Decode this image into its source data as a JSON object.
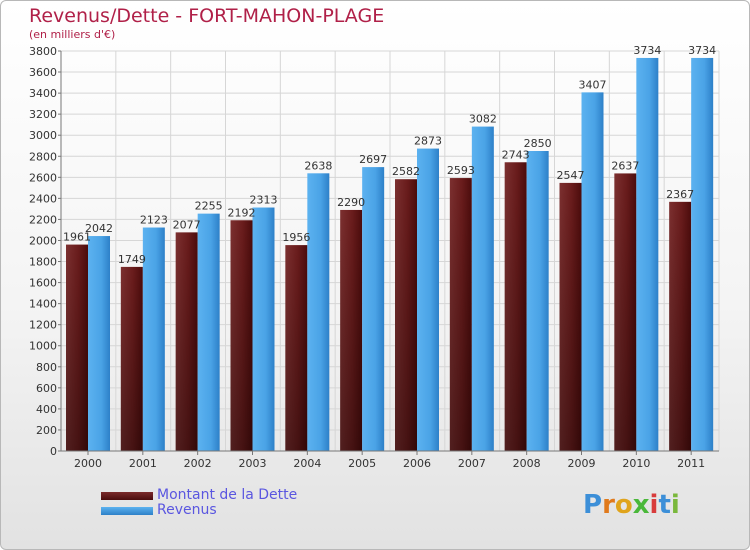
{
  "header": {
    "title": "Revenus/Dette - FORT-MAHON-PLAGE",
    "subtitle": "(en milliers d'€)"
  },
  "chart_data": {
    "type": "bar",
    "categories": [
      "2000",
      "2001",
      "2002",
      "2003",
      "2004",
      "2005",
      "2006",
      "2007",
      "2008",
      "2009",
      "2010",
      "2011"
    ],
    "series": [
      {
        "name": "Montant de la Dette",
        "values": [
          1961,
          1749,
          2077,
          2192,
          1956,
          2290,
          2582,
          2593,
          2743,
          2547,
          2637,
          2367
        ],
        "color": "#7a2a2a"
      },
      {
        "name": "Revenus",
        "values": [
          2042,
          2123,
          2255,
          2313,
          2638,
          2697,
          2873,
          3082,
          2850,
          3407,
          3734,
          3734
        ],
        "color": "#4aa3e8"
      }
    ],
    "ylim": [
      0,
      3800
    ],
    "ytick_step": 200,
    "grid": true,
    "legend": "bottom-left"
  },
  "logo": {
    "letters": [
      "P",
      "r",
      "o",
      "x",
      "i",
      "t",
      "i"
    ],
    "colors": [
      "#3c8fd8",
      "#e07a1c",
      "#e0a41c",
      "#4ab83a",
      "#d83c3c",
      "#3c8fd8",
      "#7ab83c"
    ]
  }
}
